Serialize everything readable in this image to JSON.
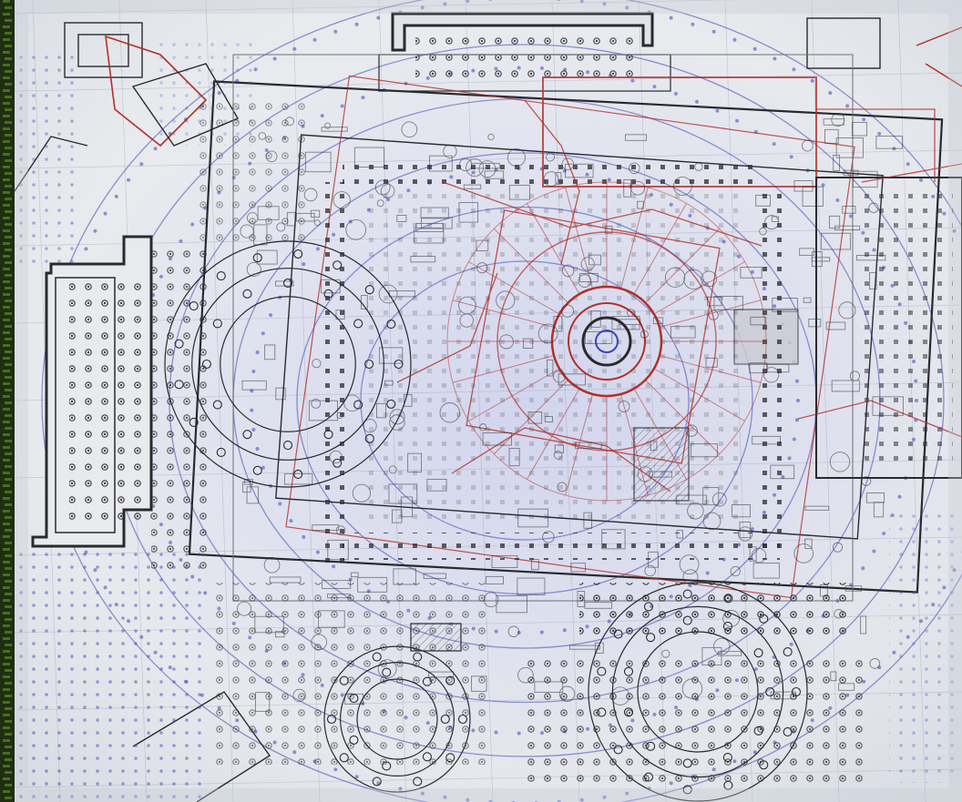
{
  "image": {
    "subject": "overlaid-architectural-plan-drawings",
    "colors": {
      "paper": "#eceef1",
      "paper_shadow": "#d7dbe2",
      "ink_black": "#2a2a2e",
      "ink_gray": "#6d6f76",
      "ink_blue": "#3d45b8",
      "ink_blue_light": "#7c84d8",
      "ink_red": "#b0302a",
      "edge_strip": "#3a5a1c",
      "edge_strip_dark": "#1f2e10"
    }
  }
}
